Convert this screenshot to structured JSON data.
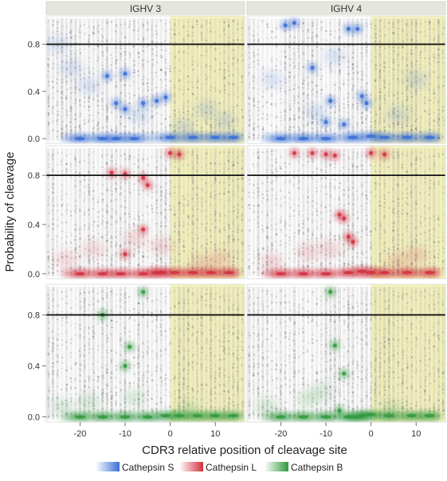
{
  "chart_data": {
    "type": "scatter",
    "facet_columns": [
      "IGHV 3",
      "IGHV 4"
    ],
    "xlabel": "CDR3 relative position of cleavage site",
    "ylabel": "Probability of cleavage",
    "x_ticks": [
      -20,
      -10,
      0,
      10
    ],
    "y_ticks": [
      0.0,
      0.4,
      0.8
    ],
    "xlim": [
      -27.5,
      16.5
    ],
    "ylim": [
      -0.04,
      1.04
    ],
    "reference_line_y": 0.8,
    "shaded_region_x": [
      0,
      16.5
    ],
    "shaded_region_color": "#f3efa8",
    "legend": {
      "position": "bottom",
      "entries": [
        {
          "label": "Cathepsin S",
          "color": "#3a6fd6"
        },
        {
          "label": "Cathepsin L",
          "color": "#d2303f"
        },
        {
          "label": "Cathepsin B",
          "color": "#2f9a3c"
        }
      ]
    },
    "panels": [
      {
        "row": 0,
        "col": 0,
        "enzyme": "Cathepsin S",
        "color": "#3a6fd6",
        "dense_points": [
          [
            -20,
            0.0
          ],
          [
            -15,
            0.0
          ],
          [
            -12,
            0.0
          ],
          [
            -8,
            0.0
          ],
          [
            0,
            0.01
          ],
          [
            5,
            0.01
          ],
          [
            10,
            0.01
          ],
          [
            14,
            0.01
          ],
          [
            -10,
            0.25
          ],
          [
            -3,
            0.32
          ],
          [
            -14,
            0.53
          ],
          [
            -10,
            0.55
          ],
          [
            -12,
            0.3
          ],
          [
            -1,
            0.35
          ],
          [
            -6,
            0.3
          ]
        ],
        "light_points": [
          [
            -25,
            0.8
          ],
          [
            -22,
            0.6
          ],
          [
            -18,
            0.45
          ],
          [
            -7,
            0.2
          ],
          [
            3,
            0.1
          ],
          [
            8,
            0.25
          ],
          [
            12,
            0.15
          ]
        ]
      },
      {
        "row": 0,
        "col": 1,
        "enzyme": "Cathepsin S",
        "color": "#3a6fd6",
        "dense_points": [
          [
            -20,
            0.0
          ],
          [
            -15,
            0.0
          ],
          [
            -10,
            0.0
          ],
          [
            -4,
            0.01
          ],
          [
            0,
            0.02
          ],
          [
            3,
            0.01
          ],
          [
            8,
            0.01
          ],
          [
            13,
            0.01
          ],
          [
            -1,
            0.3
          ],
          [
            -2,
            0.36
          ],
          [
            -9,
            0.32
          ],
          [
            -10,
            0.14
          ],
          [
            -6,
            0.12
          ],
          [
            -19,
            0.96
          ],
          [
            -17,
            0.98
          ],
          [
            -5,
            0.93
          ],
          [
            -3,
            0.93
          ],
          [
            -13,
            0.6
          ]
        ],
        "light_points": [
          [
            -12,
            0.22
          ],
          [
            -22,
            0.5
          ],
          [
            6,
            0.2
          ],
          [
            10,
            0.5
          ],
          [
            -8,
            0.7
          ]
        ]
      },
      {
        "row": 1,
        "col": 0,
        "enzyme": "Cathepsin L",
        "color": "#d2303f",
        "dense_points": [
          [
            -20,
            0.0
          ],
          [
            -15,
            0.0
          ],
          [
            -11,
            0.0
          ],
          [
            -6,
            0.0
          ],
          [
            -2,
            0.01
          ],
          [
            1,
            0.01
          ],
          [
            5,
            0.01
          ],
          [
            9,
            0.01
          ],
          [
            13,
            0.01
          ],
          [
            0,
            0.98
          ],
          [
            2,
            0.97
          ],
          [
            -13,
            0.82
          ],
          [
            -10,
            0.81
          ],
          [
            -6,
            0.78
          ],
          [
            -5,
            0.72
          ],
          [
            -6,
            0.36
          ],
          [
            -10,
            0.16
          ],
          [
            -3,
            0.01
          ]
        ],
        "light_points": [
          [
            -23,
            0.12
          ],
          [
            -17,
            0.2
          ],
          [
            -8,
            0.28
          ],
          [
            -2,
            0.22
          ],
          [
            7,
            0.08
          ],
          [
            11,
            0.12
          ]
        ]
      },
      {
        "row": 1,
        "col": 1,
        "enzyme": "Cathepsin L",
        "color": "#d2303f",
        "dense_points": [
          [
            -20,
            0.0
          ],
          [
            -15,
            0.0
          ],
          [
            -10,
            0.0
          ],
          [
            -5,
            0.01
          ],
          [
            -2,
            0.02
          ],
          [
            0,
            0.01
          ],
          [
            3,
            0.01
          ],
          [
            8,
            0.01
          ],
          [
            13,
            0.01
          ],
          [
            -17,
            0.98
          ],
          [
            -13,
            0.98
          ],
          [
            -10,
            0.97
          ],
          [
            -8,
            0.96
          ],
          [
            0,
            0.98
          ],
          [
            3,
            0.97
          ],
          [
            -7,
            0.48
          ],
          [
            -6,
            0.45
          ],
          [
            -5,
            0.3
          ],
          [
            -4,
            0.26
          ]
        ],
        "light_points": [
          [
            -22,
            0.1
          ],
          [
            -14,
            0.18
          ],
          [
            -9,
            0.2
          ],
          [
            6,
            0.1
          ],
          [
            10,
            0.15
          ]
        ]
      },
      {
        "row": 2,
        "col": 0,
        "enzyme": "Cathepsin B",
        "color": "#2f9a3c",
        "dense_points": [
          [
            -20,
            0.0
          ],
          [
            -15,
            0.0
          ],
          [
            -10,
            0.0
          ],
          [
            -5,
            0.0
          ],
          [
            -1,
            0.01
          ],
          [
            2,
            0.01
          ],
          [
            6,
            0.01
          ],
          [
            10,
            0.01
          ],
          [
            14,
            0.01
          ],
          [
            -6,
            0.98
          ],
          [
            -9,
            0.55
          ],
          [
            -15,
            0.8
          ],
          [
            -10,
            0.4
          ]
        ],
        "light_points": [
          [
            -24,
            0.08
          ],
          [
            -18,
            0.12
          ],
          [
            -8,
            0.15
          ],
          [
            4,
            0.06
          ]
        ]
      },
      {
        "row": 2,
        "col": 1,
        "enzyme": "Cathepsin B",
        "color": "#2f9a3c",
        "dense_points": [
          [
            -20,
            0.0
          ],
          [
            -15,
            0.0
          ],
          [
            -10,
            0.0
          ],
          [
            -5,
            0.0
          ],
          [
            -2,
            0.01
          ],
          [
            0,
            0.02
          ],
          [
            4,
            0.01
          ],
          [
            9,
            0.01
          ],
          [
            13,
            0.01
          ],
          [
            -9,
            0.98
          ],
          [
            -8,
            0.56
          ],
          [
            -6,
            0.34
          ],
          [
            -3,
            0.0
          ],
          [
            -7,
            0.05
          ]
        ],
        "light_points": [
          [
            -23,
            0.08
          ],
          [
            -14,
            0.14
          ],
          [
            -11,
            0.2
          ],
          [
            5,
            0.06
          ]
        ]
      }
    ]
  }
}
